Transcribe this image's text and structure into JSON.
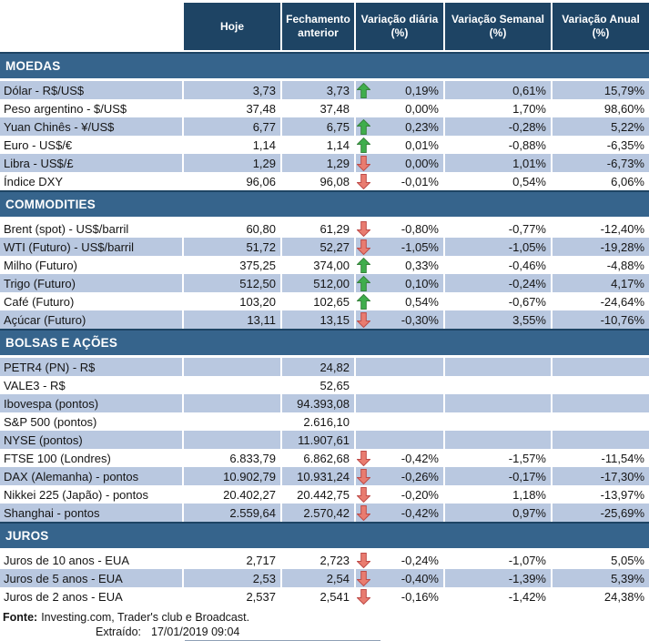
{
  "colors": {
    "header_bg": "#1E4464",
    "section_bg": "#36648C",
    "stripe_bg": "#B9C8E0",
    "text": "#151515",
    "arrow_up_fill": "#3FAE4C",
    "arrow_up_stroke": "#38833E",
    "arrow_down_fill": "#E97C70",
    "arrow_down_stroke": "#BE4B48"
  },
  "header": {
    "columns": [
      "Hoje",
      "Fechamento anterior",
      "Variação diária (%)",
      "Variação Semanal (%)",
      "Variação Anual (%)"
    ]
  },
  "sections": [
    {
      "title": "MOEDAS",
      "rows": [
        {
          "label": "Dólar - R$/US$",
          "hoje": "3,73",
          "fechamento": "3,73",
          "arrow": "up",
          "diaria": "0,19%",
          "semanal": "0,61%",
          "anual": "15,79%"
        },
        {
          "label": "Peso argentino - $/US$",
          "hoje": "37,48",
          "fechamento": "37,48",
          "arrow": "",
          "diaria": "0,00%",
          "semanal": "1,70%",
          "anual": "98,60%"
        },
        {
          "label": "Yuan Chinês - ¥/US$",
          "hoje": "6,77",
          "fechamento": "6,75",
          "arrow": "up",
          "diaria": "0,23%",
          "semanal": "-0,28%",
          "anual": "5,22%"
        },
        {
          "label": "Euro - US$/€",
          "hoje": "1,14",
          "fechamento": "1,14",
          "arrow": "up",
          "diaria": "0,01%",
          "semanal": "-0,88%",
          "anual": "-6,35%"
        },
        {
          "label": "Libra - US$/£",
          "hoje": "1,29",
          "fechamento": "1,29",
          "arrow": "down",
          "diaria": "0,00%",
          "semanal": "1,01%",
          "anual": "-6,73%"
        },
        {
          "label": "Índice DXY",
          "hoje": "96,06",
          "fechamento": "96,08",
          "arrow": "down",
          "diaria": "-0,01%",
          "semanal": "0,54%",
          "anual": "6,06%"
        }
      ]
    },
    {
      "title": "COMMODITIES",
      "rows": [
        {
          "label": "Brent (spot) - US$/barril",
          "hoje": "60,80",
          "fechamento": "61,29",
          "arrow": "down",
          "diaria": "-0,80%",
          "semanal": "-0,77%",
          "anual": "-12,40%"
        },
        {
          "label": "WTI (Futuro) - US$/barril",
          "hoje": "51,72",
          "fechamento": "52,27",
          "arrow": "down",
          "diaria": "-1,05%",
          "semanal": "-1,05%",
          "anual": "-19,28%"
        },
        {
          "label": "Milho (Futuro)",
          "hoje": "375,25",
          "fechamento": "374,00",
          "arrow": "up",
          "diaria": "0,33%",
          "semanal": "-0,46%",
          "anual": "-4,88%"
        },
        {
          "label": "Trigo (Futuro)",
          "hoje": "512,50",
          "fechamento": "512,00",
          "arrow": "up",
          "diaria": "0,10%",
          "semanal": "-0,24%",
          "anual": "4,17%"
        },
        {
          "label": "Café (Futuro)",
          "hoje": "103,20",
          "fechamento": "102,65",
          "arrow": "up",
          "diaria": "0,54%",
          "semanal": "-0,67%",
          "anual": "-24,64%"
        },
        {
          "label": "Açúcar (Futuro)",
          "hoje": "13,11",
          "fechamento": "13,15",
          "arrow": "down",
          "diaria": "-0,30%",
          "semanal": "3,55%",
          "anual": "-10,76%"
        }
      ]
    },
    {
      "title": "BOLSAS E AÇÕES",
      "rows": [
        {
          "label": "PETR4 (PN) - R$",
          "hoje": "",
          "fechamento": "24,82",
          "arrow": "",
          "diaria": "",
          "semanal": "",
          "anual": ""
        },
        {
          "label": "VALE3 - R$",
          "hoje": "",
          "fechamento": "52,65",
          "arrow": "",
          "diaria": "",
          "semanal": "",
          "anual": ""
        },
        {
          "label": "Ibovespa (pontos)",
          "hoje": "",
          "fechamento": "94.393,08",
          "arrow": "",
          "diaria": "",
          "semanal": "",
          "anual": ""
        },
        {
          "label": "S&P 500 (pontos)",
          "hoje": "",
          "fechamento": "2.616,10",
          "arrow": "",
          "diaria": "",
          "semanal": "",
          "anual": ""
        },
        {
          "label": "NYSE (pontos)",
          "hoje": "",
          "fechamento": "11.907,61",
          "arrow": "",
          "diaria": "",
          "semanal": "",
          "anual": ""
        },
        {
          "label": "FTSE 100 (Londres)",
          "hoje": "6.833,79",
          "fechamento": "6.862,68",
          "arrow": "down",
          "diaria": "-0,42%",
          "semanal": "-1,57%",
          "anual": "-11,54%"
        },
        {
          "label": "DAX (Alemanha) - pontos",
          "hoje": "10.902,79",
          "fechamento": "10.931,24",
          "arrow": "down",
          "diaria": "-0,26%",
          "semanal": "-0,17%",
          "anual": "-17,30%"
        },
        {
          "label": "Nikkei 225 (Japão) - pontos",
          "hoje": "20.402,27",
          "fechamento": "20.442,75",
          "arrow": "down",
          "diaria": "-0,20%",
          "semanal": "1,18%",
          "anual": "-13,97%"
        },
        {
          "label": "Shanghai - pontos",
          "hoje": "2.559,64",
          "fechamento": "2.570,42",
          "arrow": "down",
          "diaria": "-0,42%",
          "semanal": "0,97%",
          "anual": "-25,69%"
        }
      ]
    },
    {
      "title": "JUROS",
      "rows": [
        {
          "label": "Juros de 10 anos - EUA",
          "hoje": "2,717",
          "fechamento": "2,723",
          "arrow": "down",
          "diaria": "-0,24%",
          "semanal": "-1,07%",
          "anual": "5,05%"
        },
        {
          "label": "Juros de 5 anos - EUA",
          "hoje": "2,53",
          "fechamento": "2,54",
          "arrow": "down",
          "diaria": "-0,40%",
          "semanal": "-1,39%",
          "anual": "5,39%"
        },
        {
          "label": "Juros de 2 anos - EUA",
          "hoje": "2,537",
          "fechamento": "2,541",
          "arrow": "down",
          "diaria": "-0,16%",
          "semanal": "-1,42%",
          "anual": "24,38%"
        }
      ]
    }
  ],
  "footer": {
    "fonte_label": "Fonte:",
    "fonte_text": "Investing.com, Trader's club e Broadcast.",
    "extraido_label": "Extraído:",
    "extraido_value": "17/01/2019 09:04"
  }
}
